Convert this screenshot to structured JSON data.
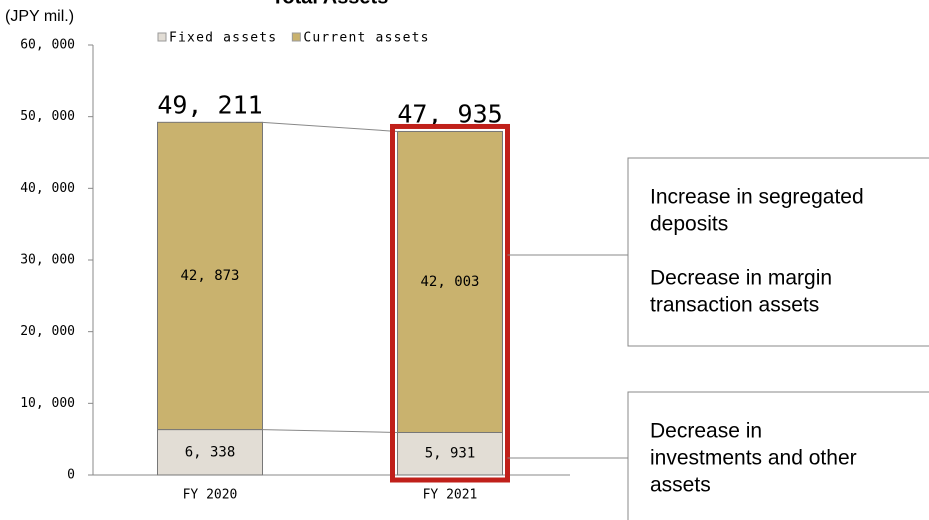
{
  "chart_data": {
    "type": "stacked_bar",
    "title": "Total Assets",
    "y_label": "(JPY mil.)",
    "categories": [
      "FY 2020",
      "FY 2021"
    ],
    "series": [
      {
        "name": "Fixed assets",
        "color": "#e2ddd5",
        "values": [
          6338,
          5931
        ],
        "value_labels": [
          "6, 338",
          "5, 931"
        ]
      },
      {
        "name": "Current assets",
        "color": "#c9b26e",
        "values": [
          42873,
          42003
        ],
        "value_labels": [
          "42, 873",
          "42, 003"
        ]
      }
    ],
    "totals": [
      49211,
      47935
    ],
    "total_labels": [
      "49, 211",
      "47, 935"
    ],
    "ylim": [
      0,
      60000
    ],
    "yticks": [
      0,
      {
        "value": 10000,
        "label": "10, 000"
      },
      {
        "value": 20000,
        "label": "20, 000"
      },
      {
        "value": 30000,
        "label": "30, 000"
      },
      {
        "value": 40000,
        "label": "40, 000"
      },
      {
        "value": 50000,
        "label": "50, 000"
      },
      {
        "value": 60000,
        "label": "60, 000"
      }
    ],
    "highlight_color": "#c0201a",
    "annotations": [
      [
        [
          "Increase in segregated",
          "deposits"
        ],
        [
          "Decrease in margin",
          "transaction assets"
        ]
      ],
      [
        [
          "Decrease in",
          "investments and other",
          "assets"
        ]
      ]
    ]
  }
}
